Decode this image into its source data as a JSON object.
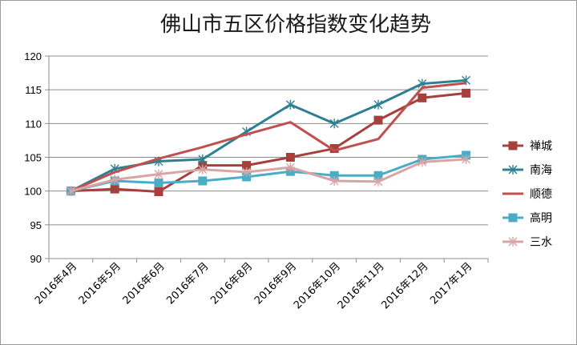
{
  "chart_data": {
    "type": "line",
    "title": "佛山市五区价格指数变化趋势",
    "xlabel": "",
    "ylabel": "",
    "ylim": [
      90,
      120
    ],
    "yticks": [
      90,
      95,
      100,
      105,
      110,
      115,
      120
    ],
    "grid": "horizontal",
    "legend_position": "right",
    "categories": [
      "2016年4月",
      "2016年5月",
      "2016年6月",
      "2016年7月",
      "2016年8月",
      "2016年9月",
      "2016年10月",
      "2016年11月",
      "2016年12月",
      "2017年1月"
    ],
    "series": [
      {
        "name": "禅城",
        "color": "#a5403d",
        "marker": "square",
        "values": [
          100.0,
          100.3,
          99.9,
          103.8,
          103.8,
          105.0,
          106.3,
          110.5,
          113.8,
          114.5
        ]
      },
      {
        "name": "南海",
        "color": "#2f7f93",
        "marker": "star",
        "values": [
          100.0,
          103.3,
          104.4,
          104.7,
          108.8,
          112.8,
          110.0,
          112.8,
          115.9,
          116.4
        ]
      },
      {
        "name": "顺德",
        "color": "#c0504d",
        "marker": "none",
        "values": [
          100.0,
          102.8,
          104.8,
          106.5,
          108.4,
          110.2,
          106.0,
          107.7,
          115.3,
          116.0
        ]
      },
      {
        "name": "高明",
        "color": "#4bacc6",
        "marker": "square",
        "values": [
          100.0,
          101.5,
          101.2,
          101.5,
          102.1,
          102.9,
          102.3,
          102.3,
          104.7,
          105.3
        ]
      },
      {
        "name": "三水",
        "color": "#d9a5a4",
        "marker": "star",
        "values": [
          100.0,
          101.7,
          102.5,
          103.2,
          102.8,
          103.5,
          101.5,
          101.4,
          104.3,
          104.7
        ]
      }
    ]
  }
}
